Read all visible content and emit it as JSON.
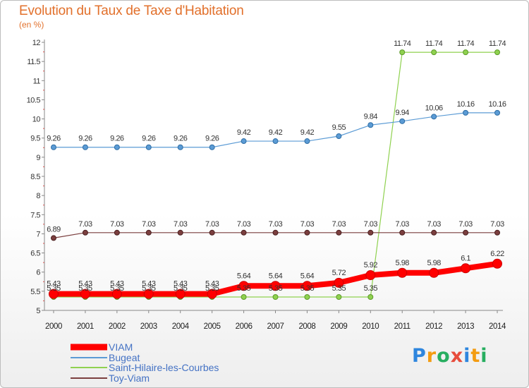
{
  "chart_data": {
    "type": "line",
    "title": "Evolution du Taux de Taxe d'Habitation",
    "subtitle": "(en %)",
    "x": [
      "2000",
      "2001",
      "2002",
      "2003",
      "2004",
      "2005",
      "2006",
      "2007",
      "2008",
      "2009",
      "2010",
      "2011",
      "2012",
      "2013",
      "2014"
    ],
    "ylim": [
      5,
      12
    ],
    "yticks": [
      "5",
      "5.5",
      "6",
      "6.5",
      "7",
      "7.5",
      "8",
      "8.5",
      "9",
      "9.5",
      "10",
      "10.5",
      "11",
      "11.5",
      "12"
    ],
    "grid": false,
    "legend_position": "bottom-left",
    "series": [
      {
        "name": "VIAM",
        "color": "#ff0000",
        "values": [
          5.43,
          5.43,
          5.43,
          5.43,
          5.43,
          5.43,
          5.64,
          5.64,
          5.64,
          5.72,
          5.92,
          5.98,
          5.98,
          6.1,
          6.22
        ],
        "labels": [
          "5.43",
          "5.43",
          "5.43",
          "5.43",
          "5.43",
          "5.43",
          "5.64",
          "5.64",
          "5.64",
          "5.72",
          "5.92",
          "5.98",
          "5.98",
          "6.1",
          "6.22"
        ]
      },
      {
        "name": "Bugeat",
        "color": "#5b9bd5",
        "values": [
          9.26,
          9.26,
          9.26,
          9.26,
          9.26,
          9.26,
          9.42,
          9.42,
          9.42,
          9.55,
          9.84,
          9.94,
          10.06,
          10.16,
          10.16
        ],
        "labels": [
          "9.26",
          "9.26",
          "9.26",
          "9.26",
          "9.26",
          "9.26",
          "9.42",
          "9.42",
          "9.42",
          "9.55",
          "9.84",
          "9.94",
          "10.06",
          "10.16",
          "10.16"
        ]
      },
      {
        "name": "Saint-Hilaire-les-Courbes",
        "color": "#8fd14f",
        "values": [
          5.35,
          5.35,
          5.35,
          5.35,
          5.35,
          5.35,
          5.35,
          5.35,
          5.35,
          5.35,
          5.35,
          11.74,
          11.74,
          11.74,
          11.74
        ],
        "labels": [
          "5.35",
          "5.35",
          "5.35",
          "5.35",
          "5.35",
          "5.35",
          "5.35",
          "5.35",
          "5.35",
          "5.35",
          "5.35",
          "11.74",
          "11.74",
          "11.74",
          "11.74"
        ]
      },
      {
        "name": "Toy-Viam",
        "color": "#7b3f3f",
        "values": [
          6.89,
          7.03,
          7.03,
          7.03,
          7.03,
          7.03,
          7.03,
          7.03,
          7.03,
          7.03,
          7.03,
          7.03,
          7.03,
          7.03,
          7.03
        ],
        "labels": [
          "6.89",
          "7.03",
          "7.03",
          "7.03",
          "7.03",
          "7.03",
          "7.03",
          "7.03",
          "7.03",
          "7.03",
          "7.03",
          "7.03",
          "7.03",
          "7.03",
          "7.03"
        ]
      }
    ]
  },
  "logo": {
    "text": "Proxiti",
    "letters": [
      "P",
      "r",
      "o",
      "x",
      "i",
      "t",
      "i"
    ],
    "colors": [
      "#2e86de",
      "#f39c12",
      "#27ae60",
      "#e74c3c",
      "#2e86de",
      "#f39c12",
      "#27ae60"
    ]
  }
}
